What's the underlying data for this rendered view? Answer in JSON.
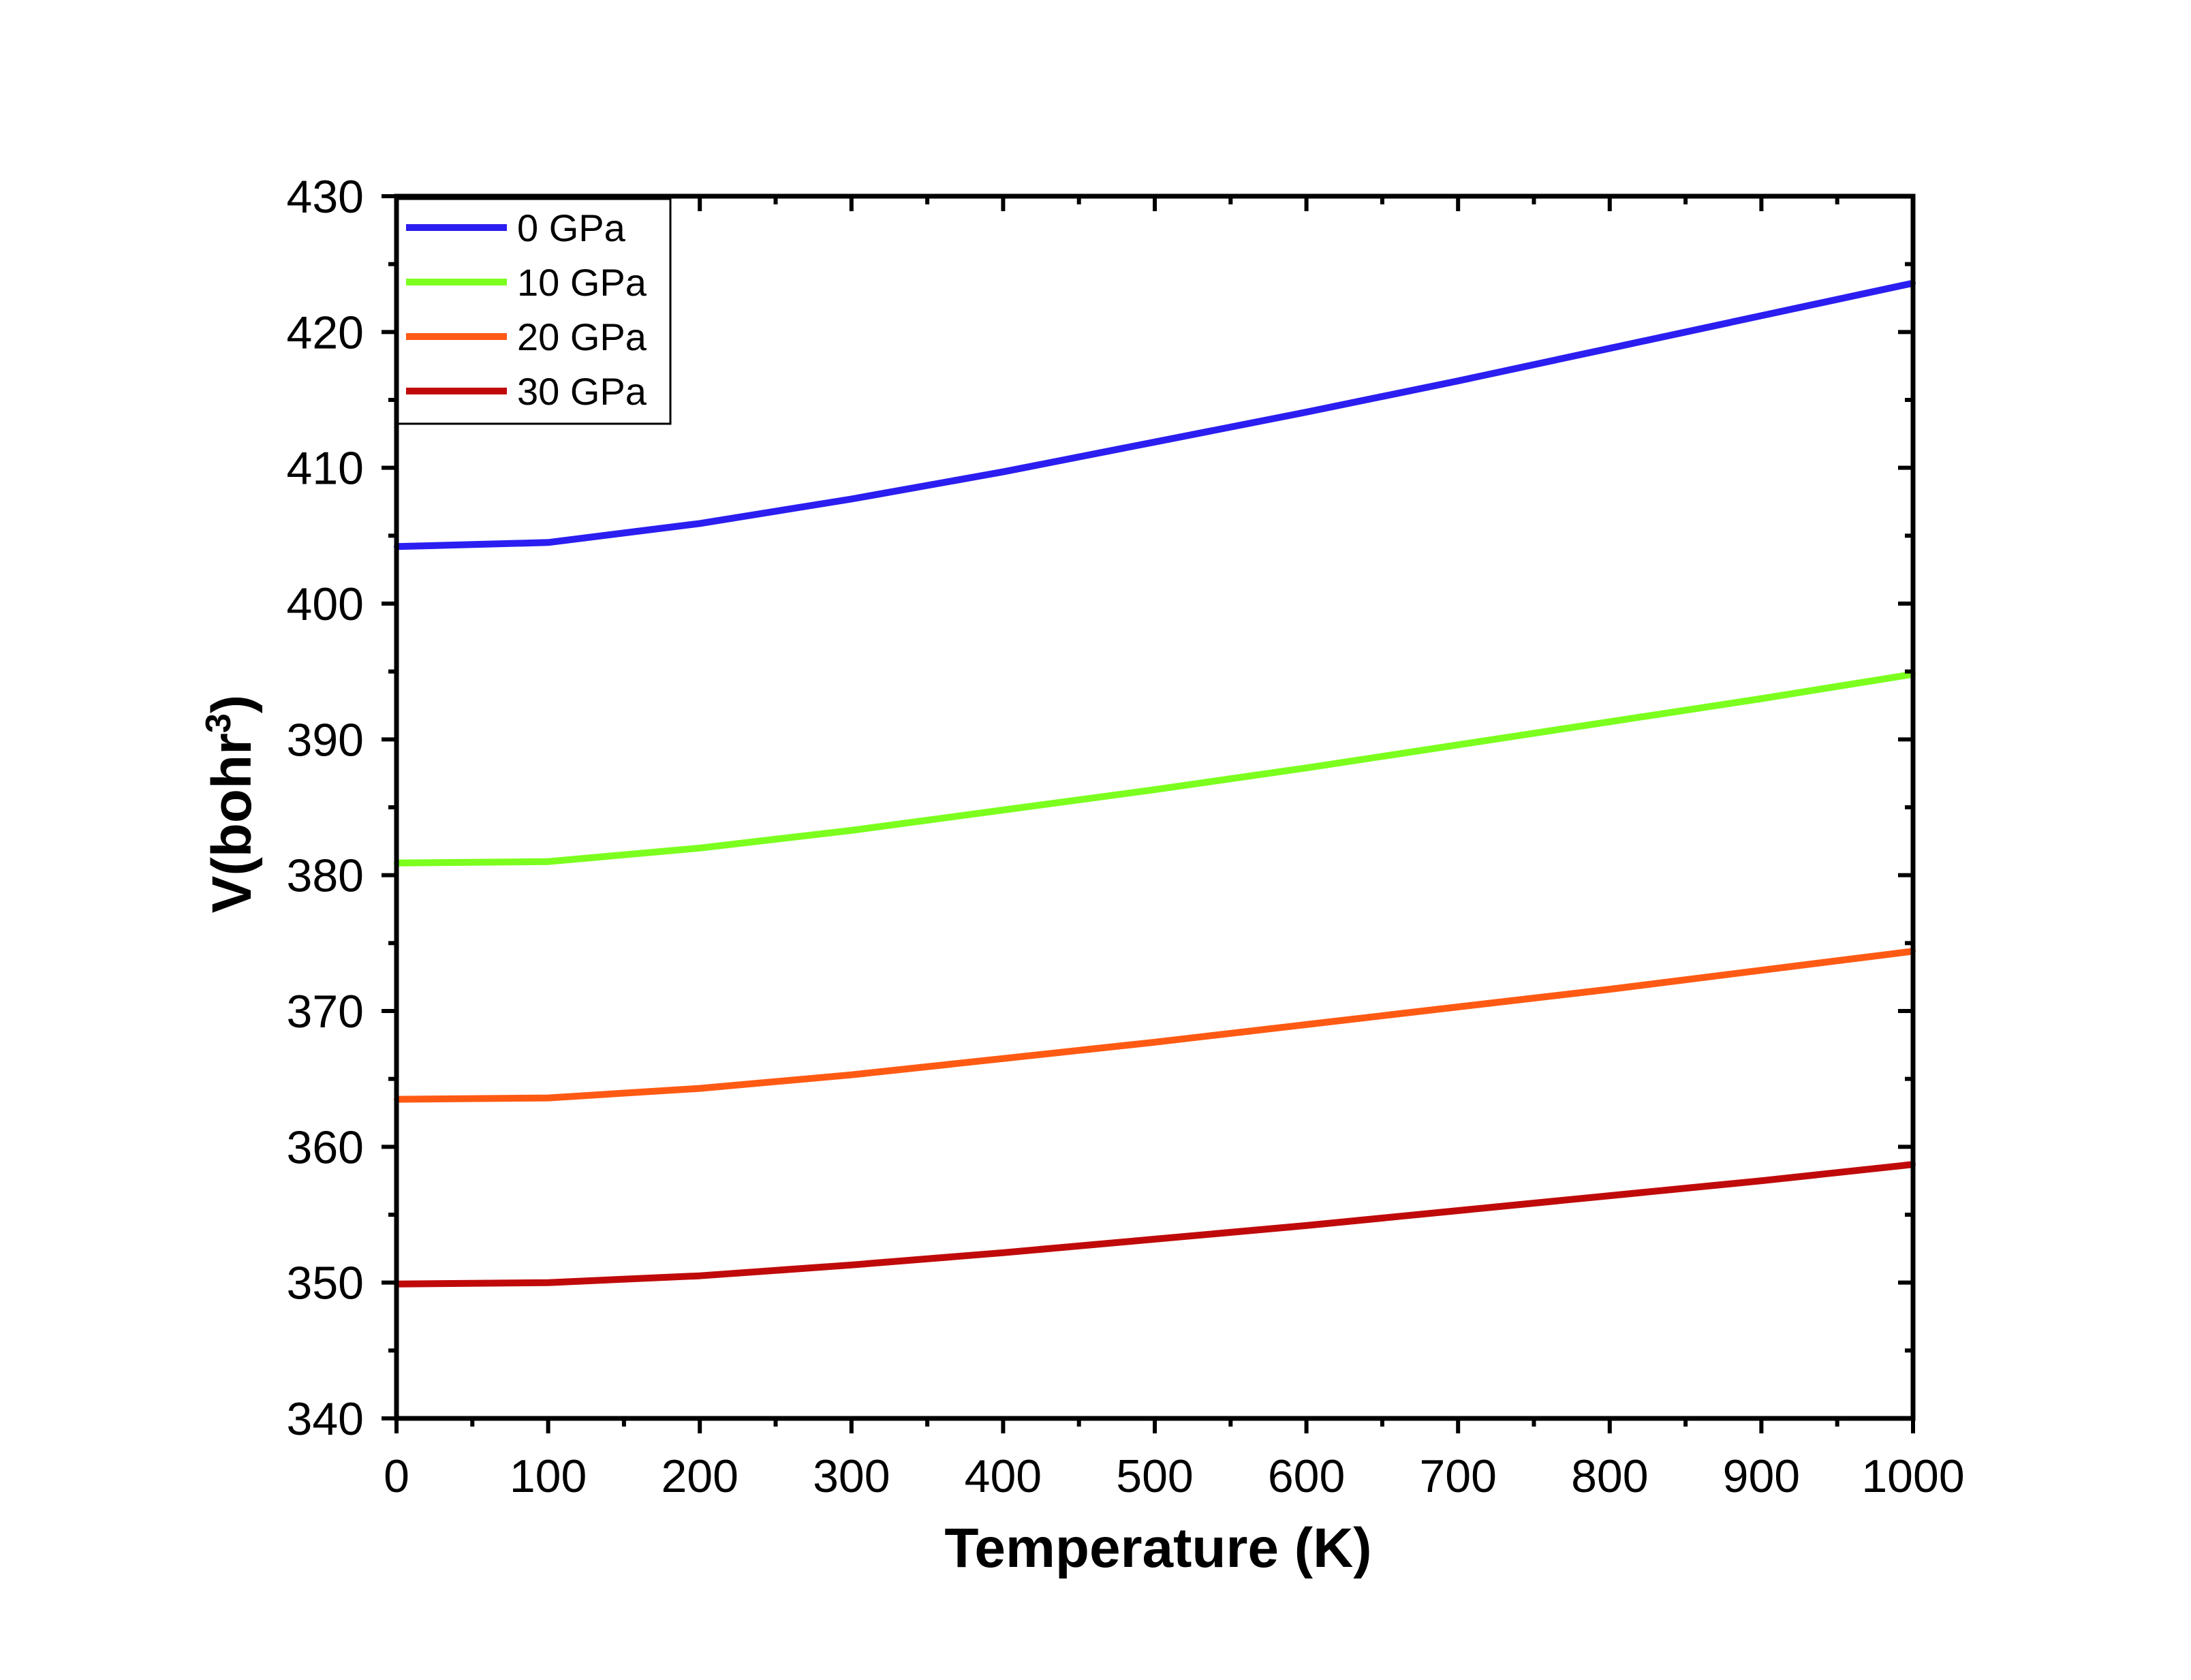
{
  "chart_data": {
    "type": "line",
    "title": "",
    "xlabel": "Temperature (K)",
    "ylabel": "V(bohr",
    "ylabel_superscript": "3",
    "ylabel_suffix": ")",
    "xlim": [
      0,
      1000
    ],
    "ylim": [
      340,
      430
    ],
    "x_ticks": [
      "0",
      "100",
      "200",
      "300",
      "400",
      "500",
      "600",
      "700",
      "800",
      "900",
      "1000"
    ],
    "y_ticks": [
      "340",
      "350",
      "360",
      "370",
      "380",
      "390",
      "400",
      "410",
      "420",
      "430"
    ],
    "grid": false,
    "legend_position": "top-left",
    "x": [
      0,
      100,
      200,
      300,
      400,
      500,
      600,
      700,
      800,
      900,
      1000
    ],
    "series": [
      {
        "name": "0 GPa",
        "color": "#2b1ef0",
        "values": [
          404.2,
          404.5,
          405.9,
          407.7,
          409.7,
          411.9,
          414.1,
          416.4,
          418.8,
          421.2,
          423.6
        ]
      },
      {
        "name": "10 GPa",
        "color": "#7cff1e",
        "values": [
          380.9,
          381.0,
          382.0,
          383.3,
          384.8,
          386.3,
          387.9,
          389.6,
          391.3,
          393.0,
          394.8
        ]
      },
      {
        "name": "20 GPa",
        "color": "#ff5a14",
        "values": [
          363.5,
          363.6,
          364.3,
          365.3,
          366.5,
          367.7,
          369.0,
          370.3,
          371.6,
          373.0,
          374.4
        ]
      },
      {
        "name": "30 GPa",
        "color": "#c00a0a",
        "values": [
          349.9,
          350.0,
          350.5,
          351.3,
          352.2,
          353.2,
          354.2,
          355.3,
          356.4,
          357.5,
          358.7
        ]
      }
    ]
  }
}
